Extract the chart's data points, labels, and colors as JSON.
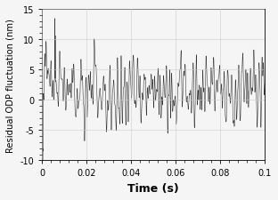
{
  "title": "",
  "xlabel": "Time (s)",
  "ylabel": "Residual ODP fluctuation (nm)",
  "xlim": [
    0,
    0.1
  ],
  "ylim": [
    -10,
    15
  ],
  "yticks": [
    -10,
    -5,
    0,
    5,
    10,
    15
  ],
  "xticks": [
    0,
    0.02,
    0.04,
    0.06,
    0.08,
    0.1
  ],
  "line_color": "#222222",
  "line_width": 0.4,
  "background_color": "#f5f5f5",
  "grid_color": "#cccccc",
  "seed": 12345,
  "n_points": 20000,
  "duration": 0.1,
  "xlabel_fontsize": 9,
  "ylabel_fontsize": 7.2,
  "tick_fontsize": 7
}
